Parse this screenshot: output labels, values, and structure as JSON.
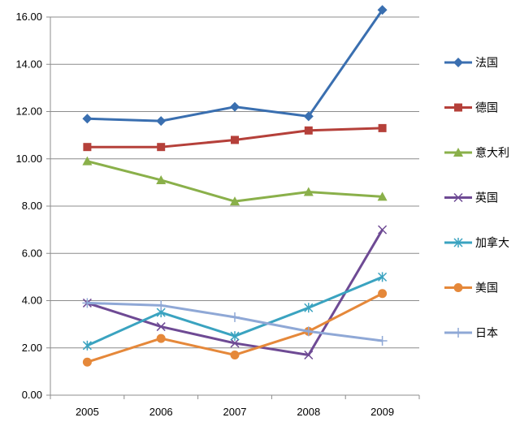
{
  "chart_data": {
    "type": "line",
    "x": [
      "2005",
      "2006",
      "2007",
      "2008",
      "2009"
    ],
    "ylim": [
      0,
      16
    ],
    "yticks": [
      "0.00",
      "2.00",
      "4.00",
      "6.00",
      "8.00",
      "10.00",
      "12.00",
      "14.00",
      "16.00"
    ],
    "grid": true,
    "legend_position": "right",
    "series": [
      {
        "name": "法国",
        "values": [
          11.7,
          11.6,
          12.2,
          11.8,
          16.3
        ],
        "color": "#3a6fb0",
        "marker": "diamond"
      },
      {
        "name": "德国",
        "values": [
          10.5,
          10.5,
          10.8,
          11.2,
          11.3
        ],
        "color": "#b5403a",
        "marker": "square"
      },
      {
        "name": "意大利",
        "values": [
          9.9,
          9.1,
          8.2,
          8.6,
          8.4
        ],
        "color": "#8ab04a",
        "marker": "triangle"
      },
      {
        "name": "英国",
        "values": [
          3.9,
          2.9,
          2.2,
          1.7,
          7.0
        ],
        "color": "#6e4a94",
        "marker": "x"
      },
      {
        "name": "加拿大",
        "values": [
          2.1,
          3.5,
          2.5,
          3.7,
          5.0
        ],
        "color": "#3aa3c0",
        "marker": "asterisk"
      },
      {
        "name": "美国",
        "values": [
          1.4,
          2.4,
          1.7,
          2.7,
          4.3
        ],
        "color": "#e5883a",
        "marker": "circle"
      },
      {
        "name": "日本",
        "values": [
          3.9,
          3.8,
          3.3,
          2.7,
          2.3
        ],
        "color": "#8fa8d6",
        "marker": "plus"
      }
    ]
  }
}
